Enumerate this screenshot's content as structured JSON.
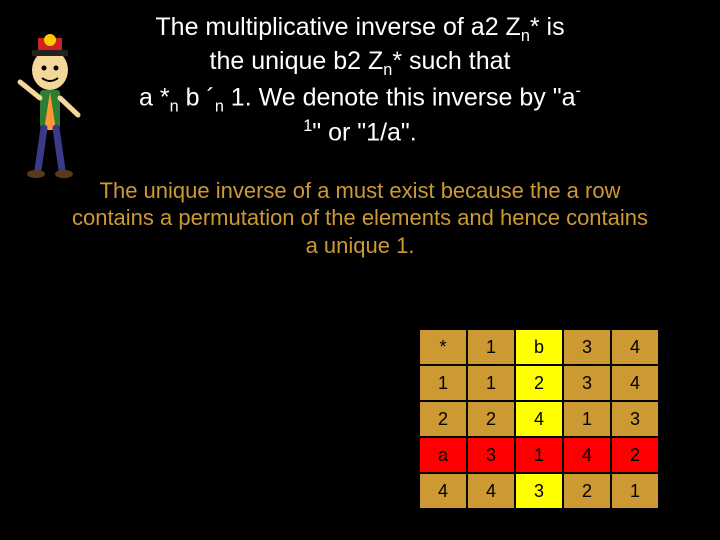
{
  "title": {
    "line1_pre": "The multiplicative inverse of a",
    "line1_two": "2",
    "line1_z": " Z",
    "line1_nsub": "n",
    "line1_star": "*",
    "line1_post": " is",
    "line2_pre": "the unique b",
    "line2_two": "2",
    "line2_z": " Z",
    "line2_nsub": "n",
    "line2_star": "*",
    "line2_post": " such that",
    "line3_pre": "a *",
    "line3_nsub1": "n",
    "line3_mid1": " b ´",
    "line3_nsub2": "n",
    "line3_mid2": " 1. We denote this inverse by \"a",
    "line3_supminus": "-",
    "line4_sup1": "1",
    "line4_post": "\" or \"1/a\"."
  },
  "body": {
    "text": "The unique inverse of a must exist because the a row contains a permutation of the elements and hence contains a unique 1."
  },
  "table": {
    "headers": [
      "*",
      "1",
      "b",
      "3",
      "4"
    ],
    "rows": [
      [
        "1",
        "1",
        "2",
        "3",
        "4"
      ],
      [
        "2",
        "2",
        "4",
        "1",
        "3"
      ],
      [
        "a",
        "3",
        "1",
        "4",
        "2"
      ],
      [
        "4",
        "4",
        "3",
        "2",
        "1"
      ]
    ],
    "highlight_col_index": 2,
    "highlight_row_index": 3,
    "colors": {
      "cell_bg": "#cc9933",
      "col_hl": "#ffff00",
      "row_hl": "#ff0000",
      "border": "#000000",
      "text": "#000000"
    }
  },
  "colors": {
    "background": "#000000",
    "title_text": "#ffffff",
    "body_text": "#cc9933"
  }
}
